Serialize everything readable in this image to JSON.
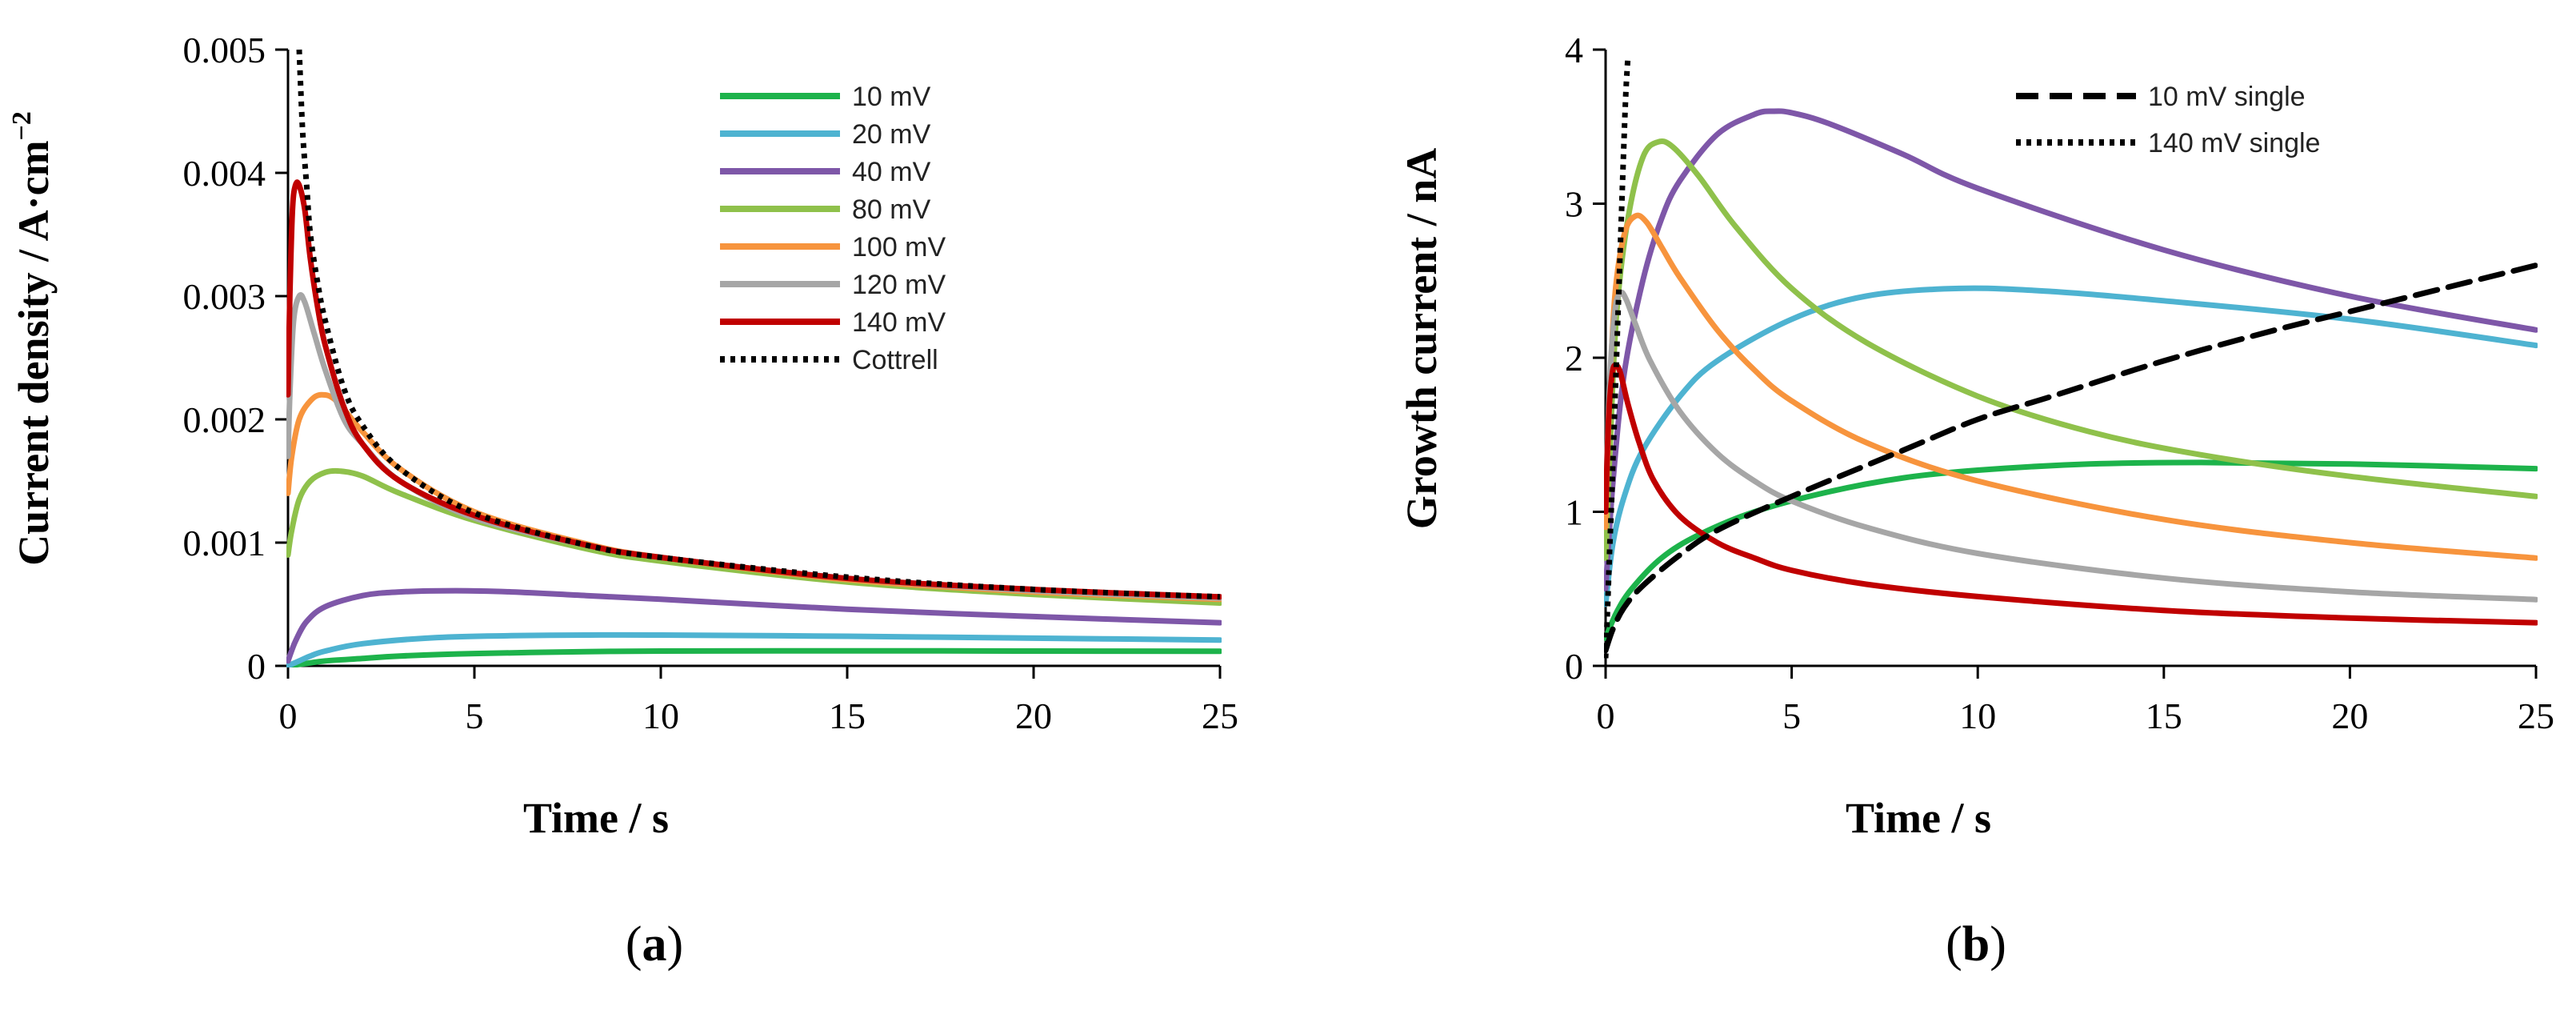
{
  "colors": {
    "10 mV": "#1db34b",
    "20 mV": "#4eb3d1",
    "40 mV": "#7e57a8",
    "80 mV": "#8fc14b",
    "100 mV": "#f7943d",
    "120 mV": "#a6a6a6",
    "140 mV": "#c00000",
    "black": "#000000"
  },
  "chart_data": [
    {
      "id": "a",
      "type": "line",
      "panel_label": "a",
      "xlabel": "Time / s",
      "ylabel": "Current density / A·cm",
      "ylabel_sup": "−2",
      "xlim": [
        0,
        25
      ],
      "ylim": [
        0,
        0.005
      ],
      "xticks": [
        0,
        5,
        10,
        15,
        20,
        25
      ],
      "yticks": [
        0,
        0.001,
        0.002,
        0.003,
        0.004,
        0.005
      ],
      "ytick_labels": [
        "0",
        "0.001",
        "0.002",
        "0.003",
        "0.004",
        "0.005"
      ],
      "legend_position": "top-right",
      "series": [
        {
          "name": "10 mV",
          "color_key": "10 mV",
          "style": "solid",
          "x": [
            0,
            0.5,
            1,
            2,
            3,
            5,
            8,
            10,
            15,
            20,
            25
          ],
          "y": [
            0,
            2e-05,
            4e-05,
            6e-05,
            8e-05,
            0.0001,
            0.000115,
            0.00012,
            0.000122,
            0.00012,
            0.000118
          ]
        },
        {
          "name": "20 mV",
          "color_key": "20 mV",
          "style": "solid",
          "x": [
            0,
            0.3,
            0.6,
            1,
            2,
            4,
            6,
            8,
            10,
            15,
            20,
            25
          ],
          "y": [
            0,
            4e-05,
            8e-05,
            0.00012,
            0.00018,
            0.00023,
            0.000245,
            0.00025,
            0.00025,
            0.00024,
            0.000225,
            0.00021
          ]
        },
        {
          "name": "40 mV",
          "color_key": "40 mV",
          "style": "solid",
          "x": [
            0,
            0.2,
            0.5,
            1,
            2,
            3,
            4.5,
            6,
            8,
            10,
            15,
            20,
            25
          ],
          "y": [
            4e-05,
            0.0002,
            0.00036,
            0.00048,
            0.00057,
            0.0006,
            0.00061,
            0.0006,
            0.00057,
            0.00054,
            0.00046,
            0.0004,
            0.00035
          ]
        },
        {
          "name": "80 mV",
          "color_key": "80 mV",
          "style": "solid",
          "x": [
            0,
            0.1,
            0.3,
            0.6,
            1,
            1.4,
            2,
            3,
            5,
            8,
            10,
            15,
            20,
            25
          ],
          "y": [
            0.0009,
            0.0011,
            0.00135,
            0.0015,
            0.00157,
            0.00158,
            0.00154,
            0.0014,
            0.00118,
            0.00095,
            0.00085,
            0.00068,
            0.00058,
            0.00051
          ]
        },
        {
          "name": "100 mV",
          "color_key": "100 mV",
          "style": "solid",
          "x": [
            0,
            0.1,
            0.3,
            0.6,
            0.9,
            1.3,
            2,
            3,
            5,
            8,
            10,
            15,
            20,
            25
          ],
          "y": [
            0.0014,
            0.0017,
            0.002,
            0.00215,
            0.0022,
            0.00215,
            0.0019,
            0.0016,
            0.00125,
            0.00099,
            0.00088,
            0.0007,
            0.0006,
            0.00054
          ]
        },
        {
          "name": "120 mV",
          "color_key": "120 mV",
          "style": "solid",
          "x": [
            0,
            0.05,
            0.15,
            0.3,
            0.45,
            0.7,
            1,
            1.5,
            2,
            3,
            5,
            8,
            10,
            15,
            20,
            25
          ],
          "y": [
            0.0017,
            0.0022,
            0.0028,
            0.003,
            0.00295,
            0.0027,
            0.0024,
            0.002,
            0.0018,
            0.0015,
            0.0012,
            0.00098,
            0.00088,
            0.00071,
            0.00061,
            0.00055
          ]
        },
        {
          "name": "140 mV",
          "color_key": "140 mV",
          "style": "solid",
          "x": [
            0,
            0.05,
            0.12,
            0.2,
            0.3,
            0.45,
            0.6,
            0.8,
            1,
            1.5,
            2,
            3,
            5,
            8,
            10,
            15,
            20,
            25
          ],
          "y": [
            0.0022,
            0.003,
            0.0037,
            0.0039,
            0.0039,
            0.0037,
            0.0033,
            0.0029,
            0.0026,
            0.0021,
            0.0018,
            0.0015,
            0.00122,
            0.00098,
            0.00088,
            0.00071,
            0.00062,
            0.00056
          ]
        },
        {
          "name": "Cottrell",
          "color_key": "black",
          "style": "dotted",
          "x": [
            0.3,
            0.34,
            0.4,
            0.5,
            0.6,
            0.8,
            1,
            1.5,
            2,
            3,
            5,
            8,
            10,
            15,
            20,
            25
          ],
          "y": [
            0.005,
            0.0047,
            0.0043,
            0.0039,
            0.0035,
            0.0031,
            0.0028,
            0.00225,
            0.00195,
            0.0016,
            0.00124,
            0.00098,
            0.00088,
            0.00072,
            0.00062,
            0.00056
          ]
        }
      ]
    },
    {
      "id": "b",
      "type": "line",
      "panel_label": "b",
      "xlabel": "Time / s",
      "ylabel": "Growth current / nA",
      "xlim": [
        0,
        25
      ],
      "ylim": [
        0,
        4
      ],
      "xticks": [
        0,
        5,
        10,
        15,
        20,
        25
      ],
      "yticks": [
        0,
        1,
        2,
        3,
        4
      ],
      "ytick_labels": [
        "0",
        "1",
        "2",
        "3",
        "4"
      ],
      "legend_position": "top-right",
      "series": [
        {
          "name": "10 mV",
          "color_key": "10 mV",
          "style": "solid",
          "in_legend": false,
          "x": [
            0,
            0.3,
            0.7,
            1.5,
            2.5,
            4,
            6,
            8,
            10,
            13,
            16,
            20,
            25
          ],
          "y": [
            0.18,
            0.35,
            0.5,
            0.7,
            0.85,
            1.0,
            1.13,
            1.22,
            1.27,
            1.31,
            1.32,
            1.31,
            1.28
          ]
        },
        {
          "name": "20 mV",
          "color_key": "20 mV",
          "style": "solid",
          "in_legend": false,
          "x": [
            0,
            0.2,
            0.5,
            1,
            2,
            3,
            5,
            7,
            9.5,
            12,
            15,
            20,
            25
          ],
          "y": [
            0.4,
            0.8,
            1.1,
            1.4,
            1.75,
            1.98,
            2.25,
            2.4,
            2.45,
            2.43,
            2.37,
            2.25,
            2.08
          ]
        },
        {
          "name": "40 mV",
          "color_key": "40 mV",
          "style": "solid",
          "in_legend": false,
          "x": [
            0,
            0.2,
            0.5,
            1,
            1.5,
            2,
            3,
            4,
            4.5,
            5,
            6,
            8,
            10,
            15,
            20,
            25
          ],
          "y": [
            0.5,
            1.2,
            1.9,
            2.5,
            2.9,
            3.15,
            3.45,
            3.58,
            3.6,
            3.59,
            3.52,
            3.32,
            3.1,
            2.7,
            2.4,
            2.18
          ]
        },
        {
          "name": "80 mV",
          "color_key": "80 mV",
          "style": "solid",
          "in_legend": false,
          "x": [
            0,
            0.15,
            0.3,
            0.6,
            1,
            1.4,
            1.8,
            2.5,
            3.5,
            5,
            7,
            10,
            13,
            16,
            20,
            25
          ],
          "y": [
            0.7,
            1.6,
            2.3,
            2.9,
            3.3,
            3.4,
            3.37,
            3.18,
            2.85,
            2.45,
            2.1,
            1.75,
            1.52,
            1.37,
            1.23,
            1.1
          ]
        },
        {
          "name": "100 mV",
          "color_key": "100 mV",
          "style": "solid",
          "in_legend": false,
          "x": [
            0,
            0.1,
            0.25,
            0.5,
            0.8,
            1.1,
            1.5,
            2,
            3,
            4,
            5,
            7,
            10,
            15,
            20,
            25
          ],
          "y": [
            0.9,
            1.7,
            2.4,
            2.8,
            2.92,
            2.88,
            2.72,
            2.52,
            2.18,
            1.92,
            1.72,
            1.45,
            1.2,
            0.95,
            0.8,
            0.7
          ]
        },
        {
          "name": "120 mV",
          "color_key": "120 mV",
          "style": "solid",
          "in_legend": false,
          "x": [
            0,
            0.1,
            0.25,
            0.4,
            0.55,
            0.8,
            1.2,
            2,
            3,
            4,
            5,
            7,
            10,
            15,
            20,
            25
          ],
          "y": [
            1.0,
            1.8,
            2.3,
            2.42,
            2.38,
            2.22,
            1.98,
            1.65,
            1.38,
            1.2,
            1.07,
            0.9,
            0.73,
            0.57,
            0.48,
            0.43
          ]
        },
        {
          "name": "140 mV",
          "color_key": "140 mV",
          "style": "solid",
          "in_legend": false,
          "x": [
            0,
            0.08,
            0.18,
            0.28,
            0.4,
            0.6,
            0.9,
            1.3,
            2,
            3,
            4,
            5,
            7,
            10,
            15,
            20,
            25
          ],
          "y": [
            1.0,
            1.6,
            1.9,
            1.95,
            1.9,
            1.7,
            1.45,
            1.2,
            0.97,
            0.8,
            0.7,
            0.62,
            0.53,
            0.45,
            0.36,
            0.31,
            0.28
          ]
        },
        {
          "name": "10 mV single",
          "color_key": "black",
          "style": "dashed",
          "in_legend": true,
          "x": [
            0,
            0.2,
            0.5,
            1,
            2,
            3,
            5,
            8,
            10,
            12,
            15,
            18,
            20,
            22,
            25
          ],
          "y": [
            0.1,
            0.24,
            0.38,
            0.52,
            0.72,
            0.88,
            1.1,
            1.4,
            1.6,
            1.75,
            1.98,
            2.18,
            2.3,
            2.42,
            2.6
          ]
        },
        {
          "name": "140 mV single",
          "color_key": "black",
          "style": "dotted",
          "in_legend": true,
          "x": [
            0,
            0.05,
            0.1,
            0.15,
            0.2,
            0.25,
            0.3,
            0.35,
            0.4,
            0.45,
            0.5,
            0.55,
            0.6
          ],
          "y": [
            0.05,
            0.35,
            0.7,
            1.0,
            1.35,
            1.7,
            2.05,
            2.4,
            2.75,
            3.1,
            3.45,
            3.75,
            3.95
          ]
        }
      ]
    }
  ]
}
